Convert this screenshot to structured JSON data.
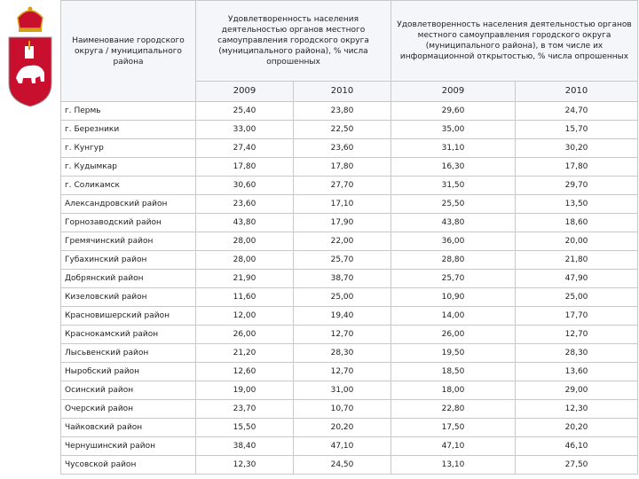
{
  "table": {
    "header": {
      "name": "Наименование городского округа / муниципального района",
      "group1": "Удовлетворенность населения деятельностью органов местного самоуправления городского округа (муниципального района), % числа опрошенных",
      "group2": "Удовлетворенность населения деятельностью органов местного самоуправления городского округа (муниципального района), в том числе их информационной открытостью, % числа опрошенных",
      "years": [
        "2009",
        "2010",
        "2009",
        "2010"
      ]
    },
    "rows": [
      [
        "г. Пермь",
        "25,40",
        "23,80",
        "29,60",
        "24,70"
      ],
      [
        "г. Березники",
        "33,00",
        "22,50",
        "35,00",
        "15,70"
      ],
      [
        "г. Кунгур",
        "27,40",
        "23,60",
        "31,10",
        "30,20"
      ],
      [
        "г. Кудымкар",
        "17,80",
        "17,80",
        "16,30",
        "17,80"
      ],
      [
        "г. Соликамск",
        "30,60",
        "27,70",
        "31,50",
        "29,70"
      ],
      [
        "Александровский район",
        "23,60",
        "17,10",
        "25,50",
        "13,50"
      ],
      [
        "Горнозаводский район",
        "43,80",
        "17,90",
        "43,80",
        "18,60"
      ],
      [
        "Гремячинский район",
        "28,00",
        "22,00",
        "36,00",
        "20,00"
      ],
      [
        "Губахинский район",
        "28,00",
        "25,70",
        "28,80",
        "21,80"
      ],
      [
        "Добрянский район",
        "21,90",
        "38,70",
        "25,70",
        "47,90"
      ],
      [
        "Кизеловский район",
        "11,60",
        "25,00",
        "10,90",
        "25,00"
      ],
      [
        "Красновишерский район",
        "12,00",
        "19,40",
        "14,00",
        "17,70"
      ],
      [
        "Краснокамский район",
        "26,00",
        "12,70",
        "26,00",
        "12,70"
      ],
      [
        "Лысьвенский район",
        "21,20",
        "28,30",
        "19,50",
        "28,30"
      ],
      [
        "Ныробский район",
        "12,60",
        "12,70",
        "18,50",
        "13,60"
      ],
      [
        "Осинский район",
        "19,00",
        "31,00",
        "18,00",
        "29,00"
      ],
      [
        "Очерский район",
        "23,70",
        "10,70",
        "22,80",
        "12,30"
      ],
      [
        "Чайковский район",
        "15,50",
        "20,20",
        "17,50",
        "20,20"
      ],
      [
        "Чернушинский район",
        "38,40",
        "47,10",
        "47,10",
        "46,10"
      ],
      [
        "Чусовской район",
        "12,30",
        "24,50",
        "13,10",
        "27,50"
      ]
    ]
  }
}
